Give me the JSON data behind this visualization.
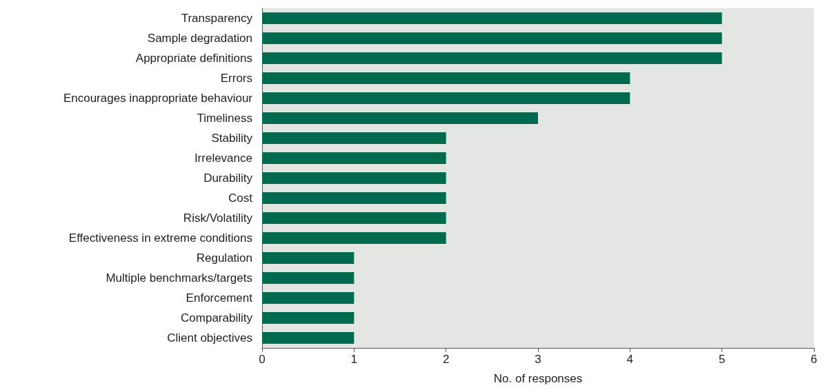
{
  "chart_data": {
    "type": "bar",
    "orientation": "horizontal",
    "xlabel": "No. of responses",
    "categories": [
      "Transparency",
      "Sample degradation",
      "Appropriate definitions",
      "Errors",
      "Encourages inappropriate behaviour",
      "Timeliness",
      "Stability",
      "Irrelevance",
      "Durability",
      "Cost",
      "Risk/Volatility",
      "Effectiveness in extreme conditions",
      "Regulation",
      "Multiple benchmarks/targets",
      "Enforcement",
      "Comparability",
      "Client objectives"
    ],
    "values": [
      5,
      5,
      5,
      4,
      4,
      3,
      2,
      2,
      2,
      2,
      2,
      2,
      1,
      1,
      1,
      1,
      1
    ],
    "color": "#006a4e",
    "xlim": [
      0,
      6
    ],
    "xticks": [
      0,
      1,
      2,
      3,
      4,
      5,
      6
    ],
    "grid": false
  }
}
